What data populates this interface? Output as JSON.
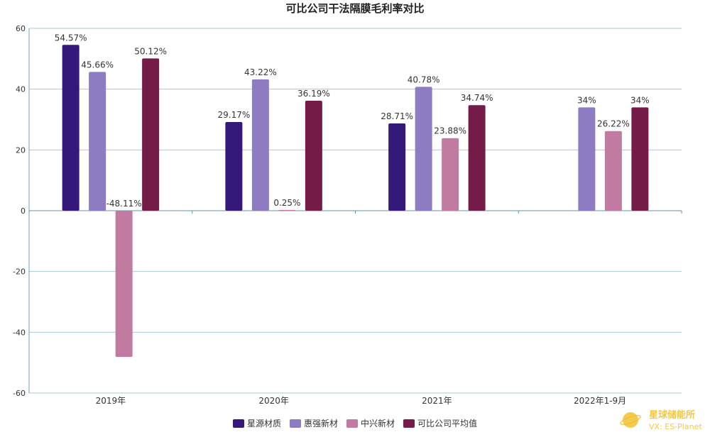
{
  "chart_data": {
    "type": "bar",
    "title": "可比公司干法隔膜毛利率对比",
    "categories": [
      "2019年",
      "2020年",
      "2021年",
      "2022年1-9月"
    ],
    "ylim": [
      -60,
      60
    ],
    "yticks": [
      -60,
      -40,
      -20,
      0,
      20,
      40,
      60
    ],
    "grid": true,
    "legend_position": "bottom-center",
    "series": [
      {
        "name": "星源材质",
        "color": "#35197a",
        "values": [
          54.57,
          29.17,
          28.71,
          null
        ],
        "labels": [
          "54.57%",
          "29.17%",
          "28.71%",
          ""
        ]
      },
      {
        "name": "惠强新材",
        "color": "#8e7cc3",
        "values": [
          45.66,
          43.22,
          40.78,
          34
        ],
        "labels": [
          "45.66%",
          "43.22%",
          "40.78%",
          "34%"
        ]
      },
      {
        "name": "中兴新材",
        "color": "#c27ba0",
        "values": [
          -48.11,
          0.25,
          23.88,
          26.22
        ],
        "labels": [
          "-48.11%",
          "0.25%",
          "23.88%",
          "26.22%"
        ]
      },
      {
        "name": "可比公司平均值",
        "color": "#741b47",
        "values": [
          50.12,
          36.19,
          34.74,
          34
        ],
        "labels": [
          "50.12%",
          "36.19%",
          "34.74%",
          "34%"
        ]
      }
    ]
  },
  "watermark": {
    "name": "星球储能所",
    "wechat": "VX: ES-Planet",
    "color": "#f1c232"
  }
}
